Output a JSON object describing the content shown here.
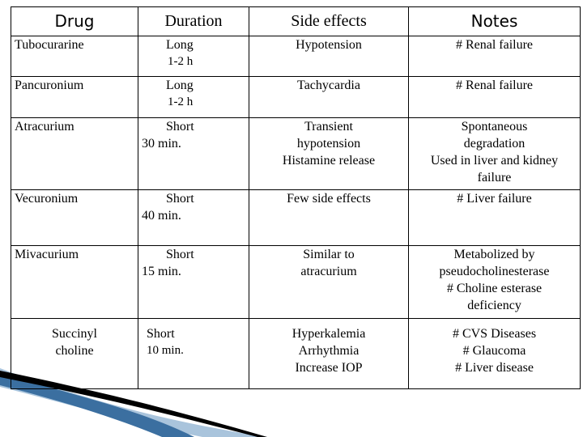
{
  "headers": {
    "drug": "Drug",
    "duration": "Duration",
    "side_effects": "Side effects",
    "notes": "Notes"
  },
  "rows": [
    {
      "drug": [
        "Tubocurarine"
      ],
      "duration": [
        "Long",
        "1-2 h"
      ],
      "side_effects": [
        "Hypotension"
      ],
      "notes": [
        "# Renal failure"
      ]
    },
    {
      "drug": [
        "Pancuronium"
      ],
      "duration": [
        "Long",
        "1-2 h"
      ],
      "side_effects": [
        "Tachycardia"
      ],
      "notes": [
        "#  Renal failure"
      ]
    },
    {
      "drug": [
        "Atracurium"
      ],
      "duration": [
        "Short",
        "30 min."
      ],
      "side_effects": [
        "Transient",
        "hypotension",
        "Histamine release"
      ],
      "notes": [
        "Spontaneous",
        "degradation",
        "Used in liver and kidney",
        "failure"
      ]
    },
    {
      "drug": [
        "Vecuronium"
      ],
      "duration": [
        "Short",
        "40 min."
      ],
      "side_effects": [
        "Few side effects"
      ],
      "notes": [
        "# Liver failure"
      ]
    },
    {
      "drug": [
        "Mivacurium"
      ],
      "duration": [
        "Short",
        "15 min."
      ],
      "side_effects": [
        "Similar to",
        "atracurium"
      ],
      "notes": [
        "Metabolized by",
        "pseudocholinesterase",
        "# Choline esterase",
        "deficiency"
      ]
    },
    {
      "drug": [
        "Succinyl",
        "choline"
      ],
      "duration": [
        "Short",
        "10 min."
      ],
      "side_effects": [
        "Hyperkalemia",
        "Arrhythmia",
        "Increase IOP"
      ],
      "notes": [
        "# CVS Diseases",
        "# Glaucoma",
        "# Liver disease"
      ]
    }
  ],
  "colors": {
    "border": "#000000",
    "decoration_dark": "#000000",
    "decoration_blue": "#3b6fa0",
    "decoration_light": "#a9c4dc"
  }
}
